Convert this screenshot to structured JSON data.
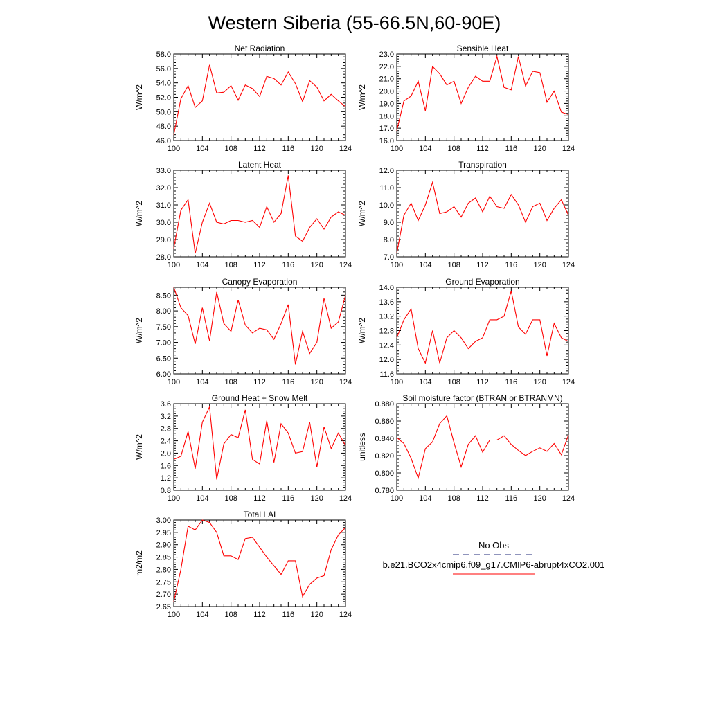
{
  "figure_title": "Western Siberia (55-66.5N,60-90E)",
  "colors": {
    "model_line": "#ff0000",
    "obs_line": "#1f2a7a",
    "axis": "#000000"
  },
  "legend": {
    "obs_label": "No Obs",
    "model_label": "b.e21.BCO2x4cmip6.f09_g17.CMIP6-abrupt4xCO2.001"
  },
  "chart_data": [
    {
      "type": "line",
      "title": "Net Radiation",
      "ylabel": "W/m^2",
      "xlim": [
        100,
        124
      ],
      "ylim": [
        46,
        58
      ],
      "xticks": [
        "100",
        "104",
        "108",
        "112",
        "116",
        "120",
        "124"
      ],
      "yticks": [
        "46.0",
        "48.0",
        "50.0",
        "52.0",
        "54.0",
        "56.0",
        "58.0"
      ],
      "x": [
        100,
        101,
        102,
        103,
        104,
        105,
        106,
        107,
        108,
        109,
        110,
        111,
        112,
        113,
        114,
        115,
        116,
        117,
        118,
        119,
        120,
        121,
        122,
        123,
        124
      ],
      "series": [
        {
          "name": "b.e21.BCO2x4cmip6.f09_g17.CMIP6-abrupt4xCO2.001",
          "values": [
            46.8,
            51.8,
            53.6,
            50.6,
            51.5,
            56.5,
            52.6,
            52.7,
            53.6,
            51.6,
            53.7,
            53.2,
            52.1,
            54.9,
            54.6,
            53.7,
            55.5,
            53.9,
            51.4,
            54.3,
            53.4,
            51.5,
            52.4,
            51.5,
            50.7
          ]
        }
      ]
    },
    {
      "type": "line",
      "title": "Sensible Heat",
      "ylabel": "W/m^2",
      "xlim": [
        100,
        124
      ],
      "ylim": [
        16,
        23
      ],
      "xticks": [
        "100",
        "104",
        "108",
        "112",
        "116",
        "120",
        "124"
      ],
      "yticks": [
        "16.0",
        "17.0",
        "18.0",
        "19.0",
        "20.0",
        "21.0",
        "22.0",
        "23.0"
      ],
      "x": [
        100,
        101,
        102,
        103,
        104,
        105,
        106,
        107,
        108,
        109,
        110,
        111,
        112,
        113,
        114,
        115,
        116,
        117,
        118,
        119,
        120,
        121,
        122,
        123,
        124
      ],
      "series": [
        {
          "name": "b.e21.BCO2x4cmip6.f09_g17.CMIP6-abrupt4xCO2.001",
          "values": [
            16.8,
            19.2,
            19.6,
            20.8,
            18.4,
            22.0,
            21.4,
            20.5,
            20.8,
            19.0,
            20.3,
            21.2,
            20.8,
            20.8,
            22.8,
            20.3,
            20.1,
            22.8,
            20.4,
            21.6,
            21.5,
            19.1,
            20.0,
            18.3,
            18.1
          ]
        }
      ]
    },
    {
      "type": "line",
      "title": "Latent Heat",
      "ylabel": "W/m^2",
      "xlim": [
        100,
        124
      ],
      "ylim": [
        28,
        33
      ],
      "xticks": [
        "100",
        "104",
        "108",
        "112",
        "116",
        "120",
        "124"
      ],
      "yticks": [
        "28.0",
        "29.0",
        "30.0",
        "31.0",
        "32.0",
        "33.0"
      ],
      "x": [
        100,
        101,
        102,
        103,
        104,
        105,
        106,
        107,
        108,
        109,
        110,
        111,
        112,
        113,
        114,
        115,
        116,
        117,
        118,
        119,
        120,
        121,
        122,
        123,
        124
      ],
      "series": [
        {
          "name": "b.e21.BCO2x4cmip6.f09_g17.CMIP6-abrupt4xCO2.001",
          "values": [
            28.5,
            30.7,
            31.3,
            28.2,
            30.0,
            31.1,
            30.0,
            29.9,
            30.1,
            30.1,
            30.0,
            30.1,
            29.7,
            30.9,
            30.0,
            30.5,
            32.7,
            29.2,
            28.9,
            29.7,
            30.2,
            29.6,
            30.3,
            30.6,
            30.4
          ]
        }
      ]
    },
    {
      "type": "line",
      "title": "Transpiration",
      "ylabel": "W/m^2",
      "xlim": [
        100,
        124
      ],
      "ylim": [
        7,
        12
      ],
      "xticks": [
        "100",
        "104",
        "108",
        "112",
        "116",
        "120",
        "124"
      ],
      "yticks": [
        "7.0",
        "8.0",
        "9.0",
        "10.0",
        "11.0",
        "12.0"
      ],
      "x": [
        100,
        101,
        102,
        103,
        104,
        105,
        106,
        107,
        108,
        109,
        110,
        111,
        112,
        113,
        114,
        115,
        116,
        117,
        118,
        119,
        120,
        121,
        122,
        123,
        124
      ],
      "series": [
        {
          "name": "b.e21.BCO2x4cmip6.f09_g17.CMIP6-abrupt4xCO2.001",
          "values": [
            7.2,
            9.4,
            10.1,
            9.1,
            10.0,
            11.3,
            9.5,
            9.6,
            9.9,
            9.3,
            10.1,
            10.4,
            9.6,
            10.5,
            9.9,
            9.8,
            10.6,
            10.0,
            9.0,
            9.9,
            10.1,
            9.1,
            9.8,
            10.3,
            9.4
          ]
        }
      ]
    },
    {
      "type": "line",
      "title": "Canopy Evaporation",
      "ylabel": "W/m^2",
      "xlim": [
        100,
        124
      ],
      "ylim": [
        6,
        8.75
      ],
      "xticks": [
        "100",
        "104",
        "108",
        "112",
        "116",
        "120",
        "124"
      ],
      "yticks": [
        "6.00",
        "6.50",
        "7.00",
        "7.50",
        "8.00",
        "8.50"
      ],
      "x": [
        100,
        101,
        102,
        103,
        104,
        105,
        106,
        107,
        108,
        109,
        110,
        111,
        112,
        113,
        114,
        115,
        116,
        117,
        118,
        119,
        120,
        121,
        122,
        123,
        124
      ],
      "series": [
        {
          "name": "b.e21.BCO2x4cmip6.f09_g17.CMIP6-abrupt4xCO2.001",
          "values": [
            8.75,
            8.1,
            7.85,
            6.95,
            8.1,
            7.05,
            8.6,
            7.6,
            7.35,
            8.35,
            7.55,
            7.3,
            7.45,
            7.4,
            7.1,
            7.6,
            8.2,
            6.3,
            7.35,
            6.65,
            7.0,
            8.4,
            7.45,
            7.65,
            8.5
          ]
        }
      ]
    },
    {
      "type": "line",
      "title": "Ground Evaporation",
      "ylabel": "W/m^2",
      "xlim": [
        100,
        124
      ],
      "ylim": [
        11.6,
        14
      ],
      "xticks": [
        "100",
        "104",
        "108",
        "112",
        "116",
        "120",
        "124"
      ],
      "yticks": [
        "11.6",
        "12.0",
        "12.4",
        "12.8",
        "13.2",
        "13.6",
        "14.0"
      ],
      "x": [
        100,
        101,
        102,
        103,
        104,
        105,
        106,
        107,
        108,
        109,
        110,
        111,
        112,
        113,
        114,
        115,
        116,
        117,
        118,
        119,
        120,
        121,
        122,
        123,
        124
      ],
      "series": [
        {
          "name": "b.e21.BCO2x4cmip6.f09_g17.CMIP6-abrupt4xCO2.001",
          "values": [
            12.6,
            13.1,
            13.4,
            12.3,
            11.9,
            12.8,
            11.9,
            12.6,
            12.8,
            12.6,
            12.3,
            12.5,
            12.6,
            13.1,
            13.1,
            13.2,
            13.9,
            12.9,
            12.7,
            13.1,
            13.1,
            12.1,
            13.0,
            12.6,
            12.5
          ]
        }
      ]
    },
    {
      "type": "line",
      "title": "Ground Heat + Snow Melt",
      "ylabel": "W/m^2",
      "xlim": [
        100,
        124
      ],
      "ylim": [
        0.8,
        3.6
      ],
      "xticks": [
        "100",
        "104",
        "108",
        "112",
        "116",
        "120",
        "124"
      ],
      "yticks": [
        "0.8",
        "1.2",
        "1.6",
        "2.0",
        "2.4",
        "2.8",
        "3.2",
        "3.6"
      ],
      "x": [
        100,
        101,
        102,
        103,
        104,
        105,
        106,
        107,
        108,
        109,
        110,
        111,
        112,
        113,
        114,
        115,
        116,
        117,
        118,
        119,
        120,
        121,
        122,
        123,
        124
      ],
      "series": [
        {
          "name": "b.e21.BCO2x4cmip6.f09_g17.CMIP6-abrupt4xCO2.001",
          "values": [
            1.8,
            1.9,
            2.7,
            1.5,
            3.0,
            3.5,
            1.15,
            2.3,
            2.6,
            2.5,
            3.4,
            1.8,
            1.65,
            3.05,
            1.7,
            2.95,
            2.65,
            2.0,
            2.05,
            3.0,
            1.55,
            2.85,
            2.15,
            2.65,
            2.25
          ]
        }
      ]
    },
    {
      "type": "line",
      "title": "Soil moisture factor (BTRAN or BTRANMN)",
      "ylabel": "unitless",
      "xlim": [
        100,
        124
      ],
      "ylim": [
        0.78,
        0.88
      ],
      "xticks": [
        "100",
        "104",
        "108",
        "112",
        "116",
        "120",
        "124"
      ],
      "yticks": [
        "0.780",
        "0.800",
        "0.820",
        "0.840",
        "0.860",
        "0.880"
      ],
      "x": [
        100,
        101,
        102,
        103,
        104,
        105,
        106,
        107,
        108,
        109,
        110,
        111,
        112,
        113,
        114,
        115,
        116,
        117,
        118,
        119,
        120,
        121,
        122,
        123,
        124
      ],
      "series": [
        {
          "name": "b.e21.BCO2x4cmip6.f09_g17.CMIP6-abrupt4xCO2.001",
          "values": [
            0.841,
            0.834,
            0.817,
            0.794,
            0.828,
            0.836,
            0.857,
            0.866,
            0.835,
            0.807,
            0.833,
            0.843,
            0.824,
            0.838,
            0.838,
            0.843,
            0.833,
            0.826,
            0.82,
            0.825,
            0.829,
            0.825,
            0.834,
            0.821,
            0.844
          ]
        }
      ]
    },
    {
      "type": "line",
      "title": "Total LAI",
      "ylabel": "m2/m2",
      "xlim": [
        100,
        124
      ],
      "ylim": [
        2.65,
        3.0
      ],
      "xticks": [
        "100",
        "104",
        "108",
        "112",
        "116",
        "120",
        "124"
      ],
      "yticks": [
        "2.65",
        "2.70",
        "2.75",
        "2.80",
        "2.85",
        "2.90",
        "2.95",
        "3.00"
      ],
      "x": [
        100,
        101,
        102,
        103,
        104,
        105,
        106,
        107,
        108,
        109,
        110,
        111,
        112,
        113,
        114,
        115,
        116,
        117,
        118,
        119,
        120,
        121,
        122,
        123,
        124
      ],
      "series": [
        {
          "name": "b.e21.BCO2x4cmip6.f09_g17.CMIP6-abrupt4xCO2.001",
          "values": [
            2.67,
            2.8,
            2.975,
            2.96,
            3.0,
            2.99,
            2.95,
            2.855,
            2.855,
            2.84,
            2.925,
            2.93,
            2.89,
            2.85,
            2.815,
            2.78,
            2.835,
            2.835,
            2.69,
            2.74,
            2.765,
            2.775,
            2.88,
            2.94,
            2.97
          ]
        }
      ]
    }
  ]
}
